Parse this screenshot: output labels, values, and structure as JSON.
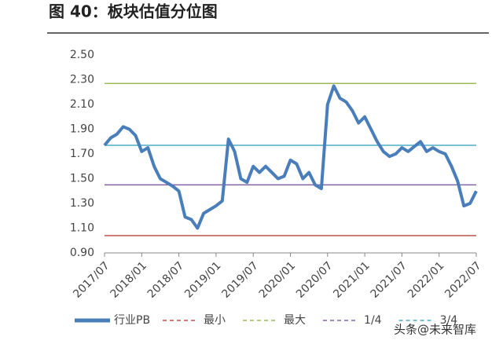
{
  "chart_data": {
    "type": "line",
    "title": "图 40：板块估值分位图",
    "categories": [
      "2017/07",
      null,
      null,
      null,
      null,
      null,
      "2018/01",
      null,
      null,
      null,
      null,
      null,
      "2018/07",
      null,
      null,
      null,
      null,
      null,
      "2019/01",
      null,
      null,
      null,
      null,
      null,
      "2019/07",
      null,
      null,
      null,
      null,
      null,
      "2020/01",
      null,
      null,
      null,
      null,
      null,
      "2020/07",
      null,
      null,
      null,
      null,
      null,
      "2021/01",
      null,
      null,
      null,
      null,
      null,
      "2021/07",
      null,
      null,
      null,
      null,
      null,
      "2022/01",
      null,
      null,
      null,
      null,
      null,
      "2022/07"
    ],
    "series": [
      {
        "name": "行业PB",
        "color": "#4a7ebb",
        "values": [
          1.77,
          1.83,
          1.86,
          1.92,
          1.9,
          1.85,
          1.72,
          1.75,
          1.6,
          1.5,
          1.47,
          1.44,
          1.4,
          1.19,
          1.17,
          1.1,
          1.22,
          1.25,
          1.28,
          1.32,
          1.82,
          1.72,
          1.5,
          1.47,
          1.6,
          1.55,
          1.6,
          1.55,
          1.5,
          1.52,
          1.65,
          1.62,
          1.5,
          1.55,
          1.45,
          1.42,
          2.1,
          2.25,
          2.15,
          2.12,
          2.05,
          1.95,
          2.0,
          1.9,
          1.8,
          1.72,
          1.68,
          1.7,
          1.75,
          1.72,
          1.76,
          1.8,
          1.72,
          1.75,
          1.72,
          1.7,
          1.6,
          1.48,
          1.28,
          1.3,
          1.4
        ]
      }
    ],
    "reference_lines": [
      {
        "name": "最小",
        "color": "#c0504d",
        "value": 1.04
      },
      {
        "name": "最大",
        "color": "#9bbb59",
        "value": 2.27
      },
      {
        "name": "1/4",
        "color": "#8064a2",
        "value": 1.45
      },
      {
        "name": "3/4",
        "color": "#4bacc6",
        "value": 1.77
      }
    ],
    "ylim": [
      0.9,
      2.5
    ],
    "yticks": [
      {
        "value": 0.9,
        "label": "0.90"
      },
      {
        "value": 1.1,
        "label": "1.10"
      },
      {
        "value": 1.3,
        "label": "1.30"
      },
      {
        "value": 1.5,
        "label": "1.50"
      },
      {
        "value": 1.7,
        "label": "1.70"
      },
      {
        "value": 1.9,
        "label": "1.90"
      },
      {
        "value": 2.1,
        "label": "2.10"
      },
      {
        "value": 2.3,
        "label": "2.30"
      },
      {
        "value": 2.5,
        "label": "2.50"
      }
    ],
    "watermark": "头条@未来智库"
  }
}
